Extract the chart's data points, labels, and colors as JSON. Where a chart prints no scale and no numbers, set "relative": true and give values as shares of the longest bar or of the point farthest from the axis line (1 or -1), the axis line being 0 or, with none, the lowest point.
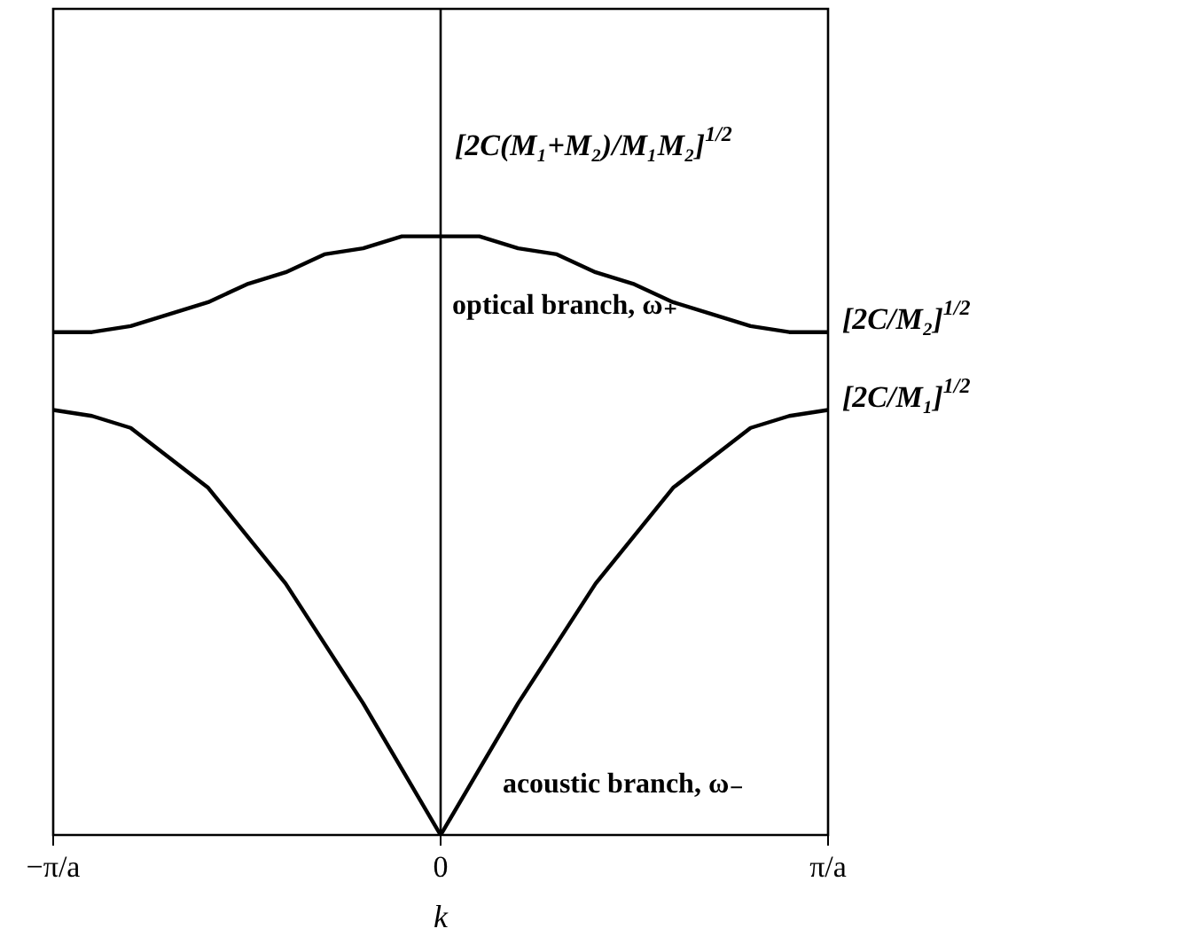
{
  "chart_data": {
    "type": "line",
    "relative": true,
    "xlabel": "k",
    "categories": [
      "−π/a",
      null,
      null,
      null,
      null,
      null,
      null,
      null,
      null,
      null,
      "0",
      null,
      null,
      null,
      null,
      null,
      null,
      null,
      null,
      null,
      "π/a"
    ],
    "series": [
      {
        "color": "#000000",
        "values": [
          0.84,
          0.84,
          0.85,
          0.87,
          0.89,
          0.92,
          0.94,
          0.97,
          0.98,
          1.0,
          1,
          1.0,
          0.98,
          0.97,
          0.94,
          0.92,
          0.89,
          0.87,
          0.85,
          0.84,
          0.84
        ]
      },
      {
        "color": "#000000",
        "values": [
          0.71,
          0.7,
          0.68,
          0.63,
          0.58,
          0.5,
          0.42,
          0.32,
          0.22,
          0.11,
          0,
          0.11,
          0.22,
          0.32,
          0.42,
          0.5,
          0.58,
          0.63,
          0.68,
          0.7,
          0.71
        ]
      }
    ],
    "ref_lines": [
      {
        "axis": "x",
        "value": "0",
        "color": "#000000"
      }
    ],
    "annotations": [
      {
        "text": "[2C(M₁+M₂)/M₁M₂]$^{1/2}$",
        "x": "0",
        "y": 1
      },
      {
        "text": "[2C/M₂]$^{1/2}$",
        "x": "π/a",
        "y": 0.84
      },
      {
        "text": "[2C/M₁]$^{1/2}$",
        "x": "π/a",
        "y": 0.71
      },
      "optical branch, ω₊",
      "acoustic branch, ω₋"
    ],
    "legend": false,
    "marker": "none",
    "line_style": "solid"
  }
}
